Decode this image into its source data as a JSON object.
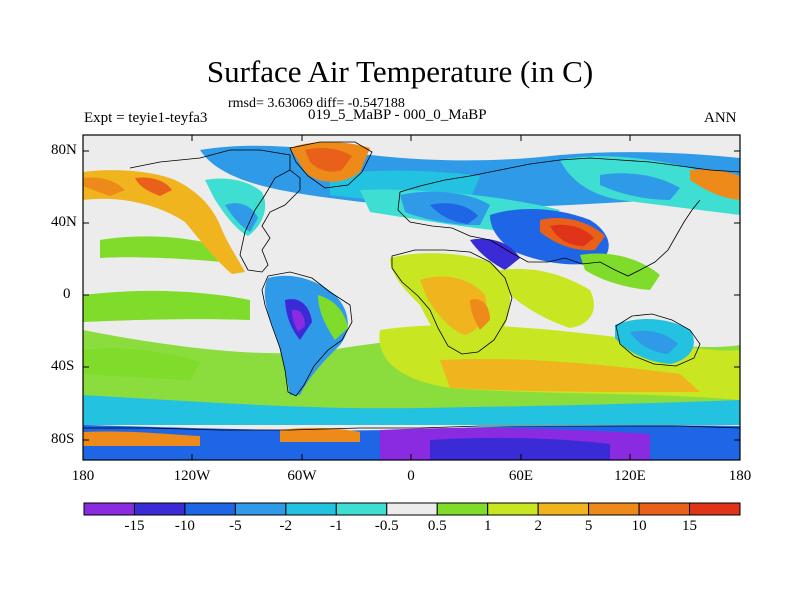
{
  "title": "Surface Air Temperature (in C)",
  "stats": "rmsd= 3.63069 diff= -0.547188",
  "experiment": "Expt = teyie1-teyfa3",
  "period": "019_5_MaBP - 000_0_MaBP",
  "season": "ANN",
  "lat_ticks": [
    "80N",
    "40N",
    "0",
    "40S",
    "80S"
  ],
  "lon_ticks": [
    "180",
    "120W",
    "60W",
    "0",
    "60E",
    "120E",
    "180"
  ],
  "colorbar": {
    "labels": [
      "-15",
      "-10",
      "-5",
      "-2",
      "-1",
      "-0.5",
      "0.5",
      "1",
      "2",
      "5",
      "10",
      "15"
    ],
    "colors": [
      "#8a2be2",
      "#3b2bd6",
      "#1e66e6",
      "#2f9be8",
      "#23c2e0",
      "#3fded2",
      "#ececec",
      "#7fdc2a",
      "#c8e621",
      "#f0b41e",
      "#ed8a1a",
      "#e8601a",
      "#e0341a"
    ]
  }
}
